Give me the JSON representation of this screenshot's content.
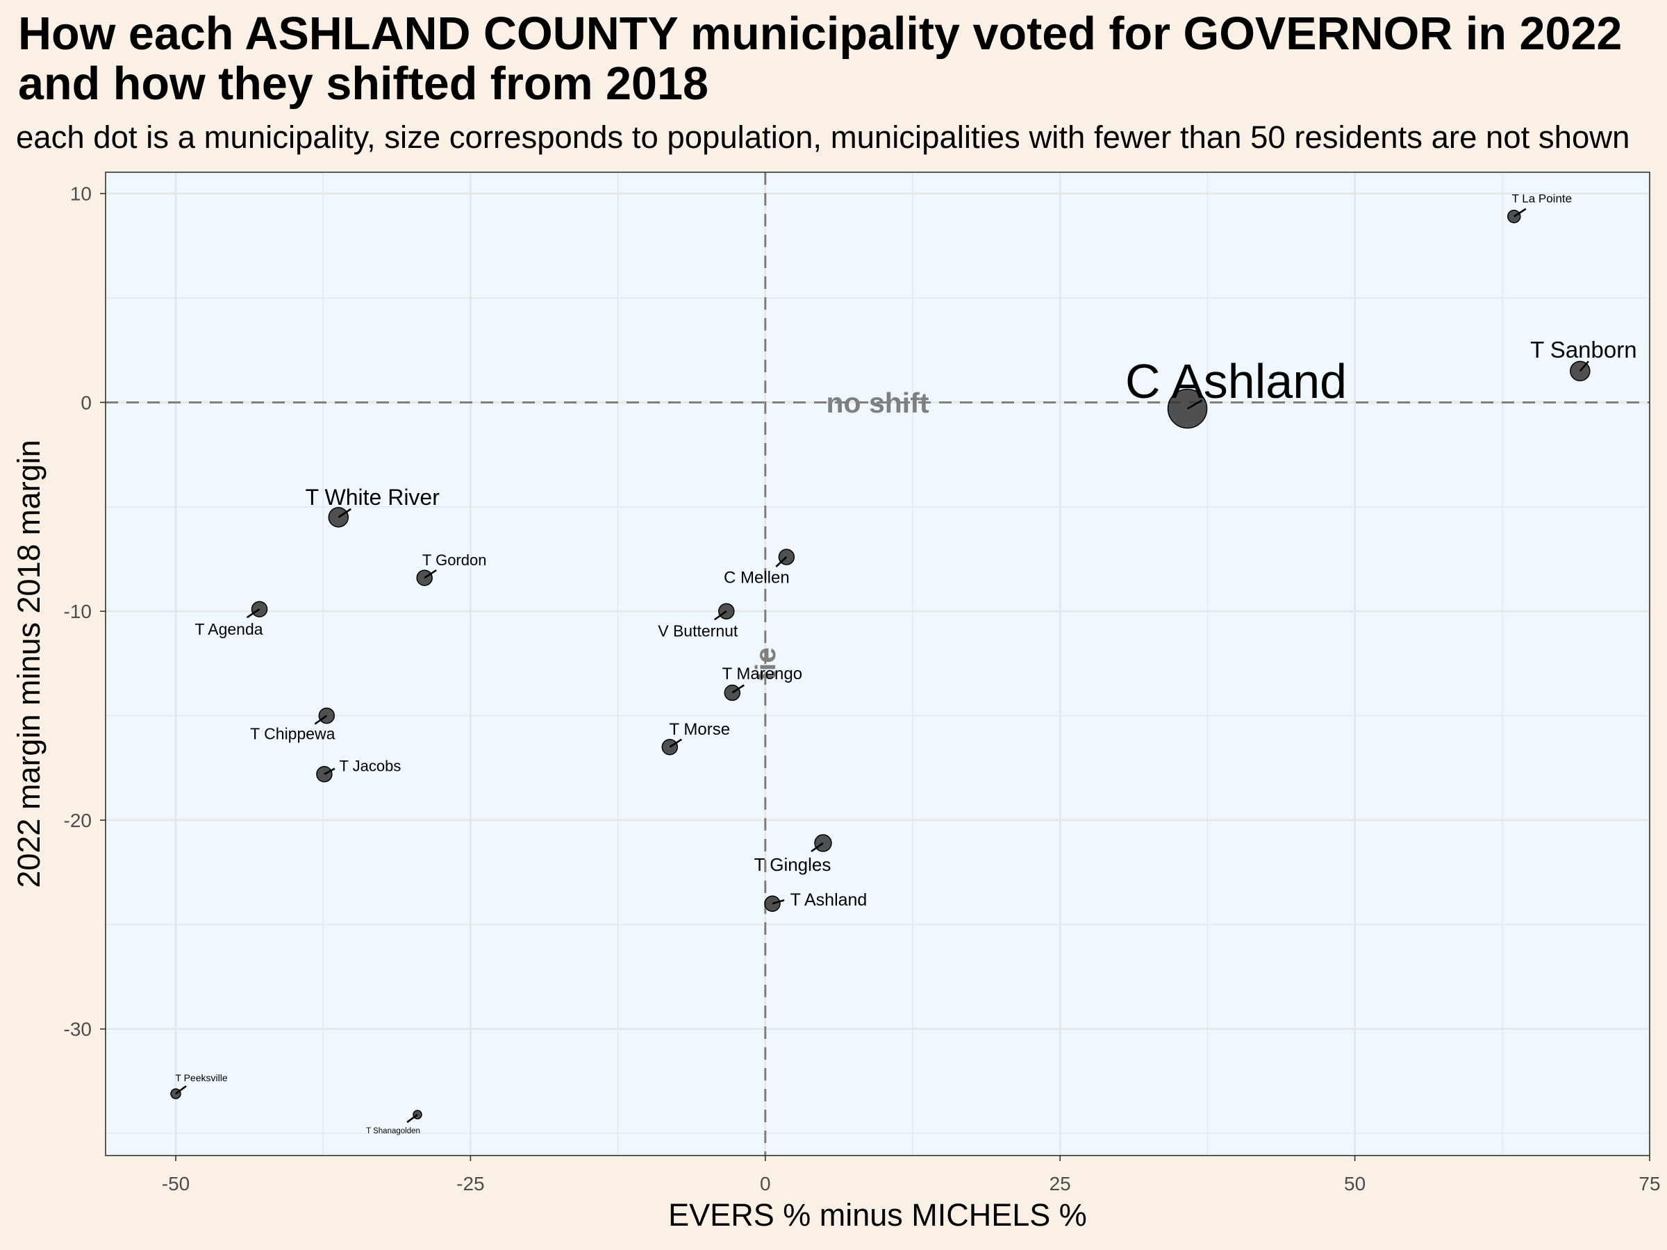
{
  "colors": {
    "page_background": "#FAF0E6",
    "panel_background": "#F0F8FF",
    "panel_border": "#333333",
    "grid": "#E6E6E6",
    "reference_line": "#7F7F7F",
    "annotation_text": "#7F7F7F",
    "point_fill": "#333333",
    "point_stroke": "#000000",
    "segment": "#000000",
    "tick_text": "#4D4D4D",
    "text": "#000000"
  },
  "chart_data": {
    "type": "scatter",
    "title_lines": [
      "How each ASHLAND COUNTY municipality voted for GOVERNOR in 2022",
      "and how they shifted from 2018"
    ],
    "subtitle": "each dot is a municipality, size corresponds to population, municipalities with fewer than 50 residents are not shown",
    "xlabel": "EVERS % minus MICHELS %",
    "ylabel": "2022 margin minus 2018 margin",
    "xlim": [
      -55.95,
      75
    ],
    "ylim": [
      -36.06,
      11.02
    ],
    "x_ticks": [
      -50,
      -25,
      0,
      25,
      50,
      75
    ],
    "x_tick_labels": [
      "-50",
      "-25",
      "0",
      "25",
      "50",
      "75"
    ],
    "y_ticks": [
      -30,
      -20,
      -10,
      0,
      10
    ],
    "y_tick_labels": [
      "-30",
      "-20",
      "-10",
      "0",
      "10"
    ],
    "grid": true,
    "vertical_line": {
      "x": 0,
      "label": "tie"
    },
    "horizontal_line": {
      "y": 0,
      "label": "no shift"
    },
    "points": [
      {
        "name": "T La Pointe",
        "x": 63.5,
        "y": 8.9
      },
      {
        "name": "T Sanborn",
        "x": 69.1,
        "y": 1.5
      },
      {
        "name": "C Ashland",
        "x": 35.8,
        "y": -0.3
      },
      {
        "name": "T White River",
        "x": -36.2,
        "y": -5.5
      },
      {
        "name": "T Gordon",
        "x": -28.9,
        "y": -8.4
      },
      {
        "name": "T Agenda",
        "x": -42.9,
        "y": -9.9
      },
      {
        "name": "C Mellen",
        "x": 1.8,
        "y": -7.4
      },
      {
        "name": "V Butternut",
        "x": -3.3,
        "y": -10.0
      },
      {
        "name": "T Marengo",
        "x": -2.8,
        "y": -13.9
      },
      {
        "name": "T Chippewa",
        "x": -37.2,
        "y": -15.0
      },
      {
        "name": "T Jacobs",
        "x": -37.4,
        "y": -17.8
      },
      {
        "name": "T Morse",
        "x": -8.1,
        "y": -16.5
      },
      {
        "name": "T Gingles",
        "x": 4.9,
        "y": -21.1
      },
      {
        "name": "T Ashland",
        "x": 0.6,
        "y": -24.0
      },
      {
        "name": "T Peeksville",
        "x": -50.0,
        "y": -33.1
      },
      {
        "name": "T Shanagolden",
        "x": -29.5,
        "y": -34.1
      }
    ]
  }
}
